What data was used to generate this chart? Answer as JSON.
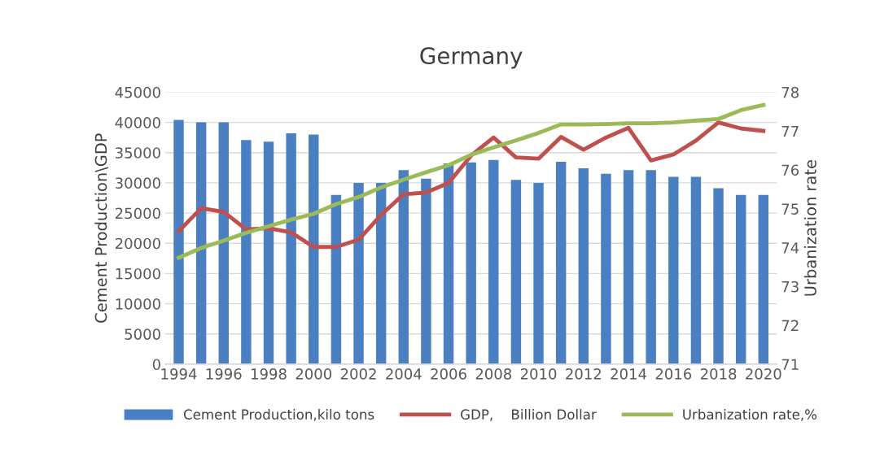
{
  "chart_data": {
    "type": "bar",
    "title": "Germany",
    "ylabel": "Cement Production\\GDP",
    "y2label": "Urbanization rate",
    "categories": [
      "1994",
      null,
      "1996",
      null,
      "1998",
      null,
      "2000",
      null,
      "2002",
      null,
      "2004",
      null,
      "2006",
      null,
      "2008",
      null,
      "2010",
      null,
      "2012",
      null,
      "2014",
      null,
      "2016",
      null,
      "2018",
      null,
      "2020"
    ],
    "series": [
      {
        "name": "Cement Production,kilo tons",
        "color": "#4a7fc1",
        "values": [
          40400,
          40000,
          40000,
          37100,
          36800,
          38200,
          38000,
          28000,
          30000,
          30000,
          32100,
          30700,
          33200,
          33400,
          33800,
          30500,
          30000,
          33500,
          32400,
          31500,
          32100,
          32100,
          31000,
          31000,
          29100,
          28000,
          28000
        ]
      },
      {
        "name": "GDP,    Billion Dollar",
        "type": "line",
        "color": "#c0504d",
        "values": [
          22000,
          25800,
          25200,
          22300,
          22500,
          21800,
          19400,
          19400,
          20600,
          24700,
          28100,
          28400,
          30000,
          34500,
          37500,
          34200,
          34000,
          37600,
          35500,
          37500,
          39100,
          33700,
          34700,
          37000,
          40000,
          39000,
          38600
        ]
      },
      {
        "name": "Urbanization rate,%",
        "type": "line",
        "axis": "y2",
        "color": "#9bbb59",
        "values": [
          73.74,
          73.99,
          74.18,
          74.38,
          74.55,
          74.72,
          74.87,
          75.12,
          75.3,
          75.55,
          75.75,
          75.94,
          76.12,
          76.39,
          76.58,
          76.76,
          76.95,
          77.17,
          77.17,
          77.18,
          77.2,
          77.2,
          77.22,
          77.27,
          77.31,
          77.54,
          77.67
        ]
      }
    ],
    "ylim": [
      0,
      45000
    ],
    "yticks": [
      0,
      5000,
      10000,
      15000,
      20000,
      25000,
      30000,
      35000,
      40000,
      45000
    ],
    "y2lim": [
      71,
      78
    ],
    "y2ticks": [
      71,
      72,
      73,
      74,
      75,
      76,
      77,
      78
    ],
    "grid": "y",
    "legend": "bottom",
    "marker": "none",
    "line_style": "solid"
  }
}
